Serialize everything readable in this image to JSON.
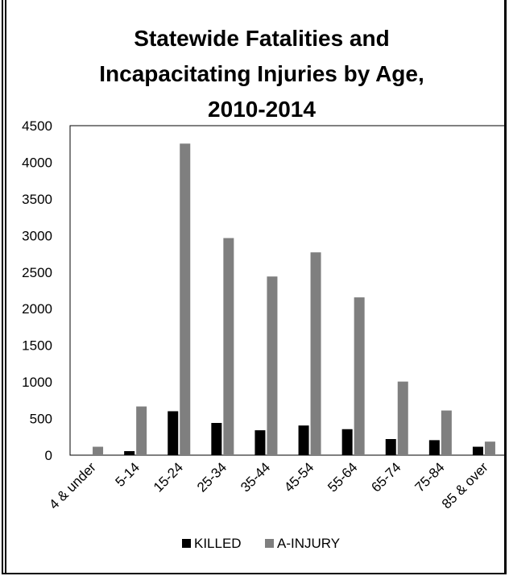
{
  "chart_data": {
    "type": "bar",
    "title": "Statewide Fatalities and Incapacitating Injuries by Age, 2010-2014",
    "title_lines": [
      "Statewide Fatalities and",
      "Incapacitating Injuries by Age,",
      "2010-2014"
    ],
    "xlabel": "",
    "ylabel": "",
    "ylim": [
      0,
      4500
    ],
    "yticks": [
      0,
      500,
      1000,
      1500,
      2000,
      2500,
      3000,
      3500,
      4000,
      4500
    ],
    "categories": [
      "4 & under",
      "5-14",
      "15-24",
      "25-34",
      "35-44",
      "45-54",
      "55-64",
      "65-74",
      "75-84",
      "85 & over"
    ],
    "series": [
      {
        "name": "KILLED",
        "color": "#000000",
        "values": [
          5,
          55,
          600,
          440,
          340,
          405,
          355,
          220,
          205,
          115
        ]
      },
      {
        "name": "A-INJURY",
        "color": "#7f7f7f",
        "values": [
          115,
          665,
          4255,
          2965,
          2440,
          2770,
          2155,
          1005,
          610,
          185
        ]
      }
    ],
    "grid": false,
    "legend": "bottom"
  }
}
